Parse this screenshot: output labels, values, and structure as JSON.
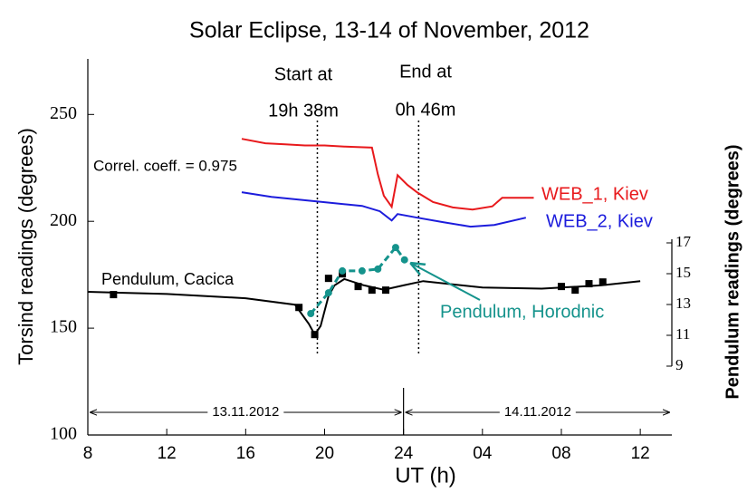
{
  "chart_data": {
    "type": "line",
    "title": "Solar Eclipse,  13-14 of November, 2012",
    "xlabel": "UT  (h)",
    "ylabel": "Torsind  readings  (degrees)",
    "y2label": "Pendulum readings (degrees)",
    "xlim": [
      8,
      37.6
    ],
    "xticks": [
      8,
      12,
      16,
      20,
      24,
      {
        "value": 28,
        "label": "04"
      },
      {
        "value": 32,
        "label": "08"
      },
      {
        "value": 36,
        "label": "12"
      }
    ],
    "ylim": [
      100,
      276
    ],
    "yticks": [
      100,
      150,
      200,
      250
    ],
    "y2lim": [
      4.53,
      28.94
    ],
    "y2ticks": [
      9,
      11,
      13,
      15,
      17
    ],
    "annotations": [
      "Start at",
      "19h 38m",
      "End at",
      "0h 46m",
      "Correl. coeff. = 0.975"
    ],
    "event_lines": [
      19.633,
      24.767
    ],
    "date_ranges": [
      {
        "label": "13.11.2012",
        "from": 8,
        "to": 24
      },
      {
        "label": "14.11.2012",
        "from": 24,
        "to": 37.6
      }
    ],
    "series": [
      {
        "name": "WEB_1, Kiev",
        "color": "#e8191c",
        "x": [
          15.8,
          17,
          18,
          19,
          20,
          21,
          22.4,
          22.7,
          23.0,
          23.4,
          23.7,
          24.2,
          24.7,
          25.5,
          26.5,
          27.5,
          28.5,
          29,
          30,
          30.6
        ],
        "values": [
          238.6,
          236.5,
          236,
          235.5,
          235.5,
          235,
          234.5,
          222,
          212,
          206.8,
          221.6,
          217,
          213.5,
          209,
          206.5,
          205.5,
          207,
          211,
          211,
          211
        ]
      },
      {
        "name": "WEB_2, Kiev",
        "color": "#1c1cdc",
        "x": [
          15.8,
          17.3,
          19.6,
          21.9,
          22.8,
          23.4,
          23.7,
          24.7,
          26,
          27.4,
          28.6,
          30.2
        ],
        "values": [
          213.6,
          211.4,
          209.3,
          207.2,
          204.7,
          200.4,
          203.4,
          201.7,
          199.6,
          197.5,
          198.3,
          201.7
        ]
      },
      {
        "name": "Pendulum, Cacica",
        "color": "#000000",
        "x": [
          8,
          12,
          16,
          18.5,
          19.2,
          19.5,
          19.8,
          20.2,
          20.5,
          21,
          22,
          23,
          24,
          25,
          28,
          31,
          34,
          36
        ],
        "values": [
          167,
          166,
          164,
          161,
          152,
          147,
          151,
          165,
          170,
          173,
          170,
          168,
          170,
          172,
          169,
          168.5,
          170,
          172
        ],
        "markers": {
          "x": [
            9.3,
            18.7,
            19.5,
            20.2,
            20.9,
            21.7,
            22.4,
            23.1,
            32,
            32.7,
            33.4,
            34.1
          ],
          "values": [
            165.7,
            159.7,
            147,
            173.3,
            175.4,
            169.5,
            167.8,
            167.8,
            169.5,
            167.8,
            170.8,
            171.6
          ]
        }
      },
      {
        "name": "Pendulum, Horodnic",
        "color": "#15938c",
        "axis": "y2",
        "x": [
          19.3,
          20.2,
          20.9,
          21.9,
          22.7,
          23.6,
          24.05
        ],
        "values": [
          12.41,
          13.76,
          15.18,
          15.18,
          15.3,
          16.7,
          15.9
        ]
      }
    ]
  }
}
